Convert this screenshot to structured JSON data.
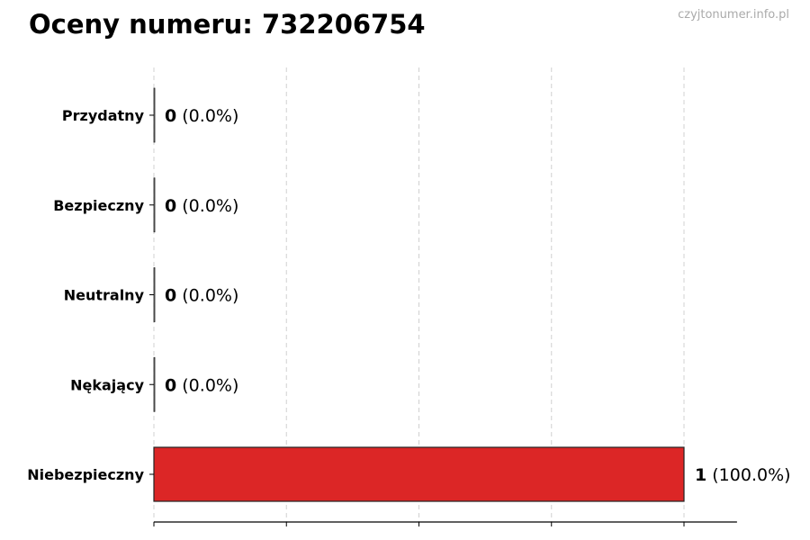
{
  "chart_data": {
    "type": "bar",
    "orientation": "horizontal",
    "title": "Oceny numeru: 732206754",
    "watermark": "czyjtonumer.info.pl",
    "categories": [
      "Przydatny",
      "Bezpieczny",
      "Neutralny",
      "Nękający",
      "Niebezpieczny"
    ],
    "values": [
      0,
      0,
      0,
      0,
      1
    ],
    "value_labels": [
      "0",
      "0",
      "0",
      "0",
      "1"
    ],
    "percent_labels": [
      "(0.0%)",
      "(0.0%)",
      "(0.0%)",
      "(0.0%)",
      "(100.0%)"
    ],
    "colors": [
      "#dddddd",
      "#dddddd",
      "#dddddd",
      "#dddddd",
      "#dc2626"
    ],
    "xlim": [
      0,
      1.1
    ],
    "xticks": [
      0,
      0.25,
      0.5,
      0.75,
      1
    ],
    "xtick_labels_shown": false,
    "grid": "x, dashed",
    "xlabel": "",
    "ylabel": ""
  }
}
